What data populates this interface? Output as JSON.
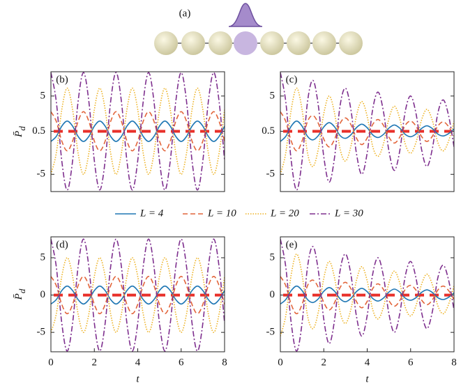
{
  "diagram": {
    "label": "(a)"
  },
  "chart_data": [
    {
      "type": "line",
      "label": "(b)",
      "ylabel": "P̄",
      "ylabel_sub": "d",
      "x": [
        0,
        0.25,
        0.5,
        0.75,
        1,
        1.25,
        1.5,
        1.75,
        2,
        2.25,
        2.5,
        2.75,
        3,
        3.25,
        3.5,
        3.75,
        4,
        4.25,
        4.5,
        4.75,
        5,
        5.25,
        5.5,
        5.75,
        6,
        6.25,
        6.5,
        6.75,
        7,
        7.25,
        7.5,
        7.75,
        8
      ],
      "xlim": [
        0,
        8
      ],
      "ylim": [
        -7.2,
        8.1
      ],
      "yticks": [
        -5,
        0.5,
        5
      ],
      "hline": {
        "value": 0.5,
        "color": "#e8302a"
      },
      "series": [
        {
          "name": "L = 4",
          "color": "#1f77b4",
          "style": "solid",
          "values": [
            -0.8,
            -0.15,
            1.15,
            1.8,
            1.15,
            -0.15,
            -0.8,
            -0.15,
            1.15,
            1.8,
            1.15,
            -0.15,
            -0.8,
            -0.15,
            1.15,
            1.8,
            1.15,
            -0.15,
            -0.8,
            -0.15,
            1.15,
            1.8,
            1.15,
            -0.15,
            -0.8,
            -0.15,
            1.15,
            1.8,
            1.15,
            -0.15,
            -0.8,
            -0.15,
            1.15
          ]
        },
        {
          "name": "L = 10",
          "color": "#e2643a",
          "style": "dashed",
          "values": [
            3,
            1.75,
            -0.75,
            -2,
            -0.75,
            1.75,
            3,
            1.75,
            -0.75,
            -2,
            -0.75,
            1.75,
            3,
            1.75,
            -0.75,
            -2,
            -0.75,
            1.75,
            3,
            1.75,
            -0.75,
            -2,
            -0.75,
            1.75,
            3,
            1.75,
            -0.75,
            -2,
            -0.75,
            1.75,
            3,
            1.75,
            -0.75
          ]
        },
        {
          "name": "L = 20",
          "color": "#edb120",
          "style": "dotted",
          "values": [
            -5,
            -2.25,
            3.25,
            6,
            3.25,
            -2.25,
            -5,
            -2.25,
            3.25,
            6,
            3.25,
            -2.25,
            -5,
            -2.25,
            3.25,
            6,
            3.25,
            -2.25,
            -5,
            -2.25,
            3.25,
            6,
            3.25,
            -2.25,
            -5,
            -2.25,
            3.25,
            6,
            3.25,
            -2.25,
            -5,
            -2.25,
            3.25
          ]
        },
        {
          "name": "L = 30",
          "color": "#7e2f8e",
          "style": "dashdot",
          "values": [
            8,
            4.25,
            -3.25,
            -7,
            -3.25,
            4.25,
            8,
            4.25,
            -3.25,
            -7,
            -3.25,
            4.25,
            8,
            4.25,
            -3.25,
            -7,
            -3.25,
            4.25,
            8,
            4.25,
            -3.25,
            -7,
            -3.25,
            4.25,
            8,
            4.25,
            -3.25,
            -7,
            -3.25,
            4.25,
            8,
            4.25,
            -3.25
          ]
        }
      ]
    },
    {
      "type": "line",
      "label": "(c)",
      "x": [
        0,
        0.25,
        0.5,
        0.75,
        1,
        1.25,
        1.5,
        1.75,
        2,
        2.25,
        2.5,
        2.75,
        3,
        3.25,
        3.5,
        3.75,
        4,
        4.25,
        4.5,
        4.75,
        5,
        5.25,
        5.5,
        5.75,
        6,
        6.25,
        6.5,
        6.75,
        7,
        7.25,
        7.5,
        7.75,
        8
      ],
      "xlim": [
        0,
        8
      ],
      "ylim": [
        -7.2,
        8.1
      ],
      "yticks": [
        -5,
        0.5,
        5
      ],
      "hline": {
        "value": 0.5,
        "color": "#e8302a"
      },
      "series": [
        {
          "name": "L = 4",
          "color": "#1f77b4",
          "style": "solid",
          "values": [
            -0.8,
            -0.15,
            1.15,
            1.8,
            1.15,
            -0.15,
            -0.6,
            -0.05,
            1.05,
            1.6,
            1.05,
            -0.05,
            -0.4,
            0.05,
            0.95,
            1.4,
            0.95,
            0.05,
            -0.3,
            0.1,
            0.9,
            1.3,
            0.9,
            0.1,
            -0.2,
            0.15,
            0.85,
            1.2,
            0.85,
            0.15,
            -0.1,
            0.2,
            0.8
          ]
        },
        {
          "name": "L = 10",
          "color": "#e2643a",
          "style": "dashed",
          "values": [
            3,
            1.75,
            -0.75,
            -2,
            -0.75,
            1.75,
            2.5,
            1.5,
            -0.5,
            -1.5,
            -0.5,
            1.5,
            2.2,
            1.35,
            -0.35,
            -1.2,
            -0.35,
            1.35,
            2,
            1.25,
            -0.25,
            -1,
            -0.25,
            1.25,
            1.8,
            1.15,
            -0.15,
            -0.8,
            -0.15,
            1.15,
            1.7,
            1.1,
            -0.1
          ]
        },
        {
          "name": "L = 20",
          "color": "#edb120",
          "style": "dotted",
          "values": [
            -5,
            -2.25,
            3.25,
            6,
            3.25,
            -2.25,
            -4,
            -1.75,
            2.75,
            5,
            2.75,
            -1.75,
            -3.3,
            -1.4,
            2.4,
            4.3,
            2.4,
            -1.4,
            -2.7,
            -1.1,
            2.1,
            3.7,
            2.1,
            -1.1,
            -2.3,
            -0.9,
            1.9,
            3.3,
            1.9,
            -0.9,
            -2,
            -0.75,
            1.75
          ]
        },
        {
          "name": "L = 30",
          "color": "#7e2f8e",
          "style": "dashdot",
          "values": [
            8,
            4.25,
            -3.25,
            -7,
            -3.25,
            4.25,
            7,
            3.75,
            -2.75,
            -6,
            -2.75,
            3.75,
            6,
            3.25,
            -2.25,
            -5,
            -2.25,
            3.25,
            5.5,
            3,
            -2,
            -4.5,
            -2,
            3,
            5,
            2.75,
            -1.75,
            -4,
            -1.75,
            2.75,
            4.5,
            2.5,
            -1.5
          ]
        }
      ]
    },
    {
      "type": "line",
      "label": "(d)",
      "ylabel": "P̄",
      "ylabel_sub": "d",
      "xlabel": "t",
      "x": [
        0,
        0.25,
        0.5,
        0.75,
        1,
        1.25,
        1.5,
        1.75,
        2,
        2.25,
        2.5,
        2.75,
        3,
        3.25,
        3.5,
        3.75,
        4,
        4.25,
        4.5,
        4.75,
        5,
        5.25,
        5.5,
        5.75,
        6,
        6.25,
        6.5,
        6.75,
        7,
        7.25,
        7.5,
        7.75,
        8
      ],
      "xlim": [
        0,
        8
      ],
      "xticks": [
        0,
        2,
        4,
        6,
        8
      ],
      "ylim": [
        -7.6,
        7.8
      ],
      "yticks": [
        -5,
        0,
        5
      ],
      "hline": {
        "value": 0,
        "color": "#e8302a"
      },
      "series": [
        {
          "name": "L = 4",
          "color": "#1f77b4",
          "style": "solid",
          "values": [
            -1.2,
            -0.6,
            0.6,
            1.2,
            0.6,
            -0.6,
            -1.2,
            -0.6,
            0.6,
            1.2,
            0.6,
            -0.6,
            -1.2,
            -0.6,
            0.6,
            1.2,
            0.6,
            -0.6,
            -1.2,
            -0.6,
            0.6,
            1.2,
            0.6,
            -0.6,
            -1.2,
            -0.6,
            0.6,
            1.2,
            0.6,
            -0.6,
            -1.2,
            -0.6,
            0.6
          ]
        },
        {
          "name": "L = 10",
          "color": "#e2643a",
          "style": "dashed",
          "values": [
            2.5,
            1.25,
            -1.25,
            -2.5,
            -1.25,
            1.25,
            2.5,
            1.25,
            -1.25,
            -2.5,
            -1.25,
            1.25,
            2.5,
            1.25,
            -1.25,
            -2.5,
            -1.25,
            1.25,
            2.5,
            1.25,
            -1.25,
            -2.5,
            -1.25,
            1.25,
            2.5,
            1.25,
            -1.25,
            -2.5,
            -1.25,
            1.25,
            2.5,
            1.25,
            -1.25
          ]
        },
        {
          "name": "L = 20",
          "color": "#edb120",
          "style": "dotted",
          "values": [
            -5,
            -2.5,
            2.5,
            5,
            2.5,
            -2.5,
            -5,
            -2.5,
            2.5,
            5,
            2.5,
            -2.5,
            -5,
            -2.5,
            2.5,
            5,
            2.5,
            -2.5,
            -5,
            -2.5,
            2.5,
            5,
            2.5,
            -2.5,
            -5,
            -2.5,
            2.5,
            5,
            2.5,
            -2.5,
            -5,
            -2.5,
            2.5
          ]
        },
        {
          "name": "L = 30",
          "color": "#7e2f8e",
          "style": "dashdot",
          "values": [
            7.5,
            3.75,
            -3.75,
            -7.5,
            -3.75,
            3.75,
            7.5,
            3.75,
            -3.75,
            -7.5,
            -3.75,
            3.75,
            7.5,
            3.75,
            -3.75,
            -7.5,
            -3.75,
            3.75,
            7.5,
            3.75,
            -3.75,
            -7.5,
            -3.75,
            3.75,
            7.5,
            3.75,
            -3.75,
            -7.5,
            -3.75,
            3.75,
            7.5,
            3.75,
            -3.75
          ]
        }
      ]
    },
    {
      "type": "line",
      "label": "(e)",
      "xlabel": "t",
      "x": [
        0,
        0.25,
        0.5,
        0.75,
        1,
        1.25,
        1.5,
        1.75,
        2,
        2.25,
        2.5,
        2.75,
        3,
        3.25,
        3.5,
        3.75,
        4,
        4.25,
        4.5,
        4.75,
        5,
        5.25,
        5.5,
        5.75,
        6,
        6.25,
        6.5,
        6.75,
        7,
        7.25,
        7.5,
        7.75,
        8
      ],
      "xlim": [
        0,
        8
      ],
      "xticks": [
        0,
        2,
        4,
        6,
        8
      ],
      "ylim": [
        -7.6,
        7.8
      ],
      "yticks": [
        -5,
        0,
        5
      ],
      "hline": {
        "value": 0,
        "color": "#e8302a"
      },
      "series": [
        {
          "name": "L = 4",
          "color": "#1f77b4",
          "style": "solid",
          "values": [
            -1.2,
            -0.6,
            0.6,
            1.2,
            0.6,
            -0.6,
            -1,
            -0.5,
            0.5,
            1,
            0.5,
            -0.5,
            -0.9,
            -0.45,
            0.45,
            0.9,
            0.45,
            -0.45,
            -0.8,
            -0.4,
            0.4,
            0.8,
            0.4,
            -0.4,
            -0.7,
            -0.35,
            0.35,
            0.7,
            0.35,
            -0.35,
            -0.6,
            -0.3,
            0.3
          ]
        },
        {
          "name": "L = 10",
          "color": "#e2643a",
          "style": "dashed",
          "values": [
            2.5,
            1.25,
            -1.25,
            -2.5,
            -1.25,
            1.25,
            2,
            1,
            -1,
            -2,
            -1,
            1,
            1.7,
            0.85,
            -0.85,
            -1.7,
            -0.85,
            0.85,
            1.5,
            0.75,
            -0.75,
            -1.5,
            -0.75,
            0.75,
            1.3,
            0.65,
            -0.65,
            -1.3,
            -0.65,
            0.65,
            1.2,
            0.6,
            -0.6
          ]
        },
        {
          "name": "L = 20",
          "color": "#edb120",
          "style": "dotted",
          "values": [
            -5.5,
            -2.75,
            2.75,
            5.5,
            2.75,
            -2.75,
            -4.5,
            -2.25,
            2.25,
            4.5,
            2.25,
            -2.25,
            -3.8,
            -1.9,
            1.9,
            3.8,
            1.9,
            -1.9,
            -3.2,
            -1.6,
            1.6,
            3.2,
            1.6,
            -1.6,
            -2.8,
            -1.4,
            1.4,
            2.8,
            1.4,
            -1.4,
            -2.5,
            -1.25,
            1.25
          ]
        },
        {
          "name": "L = 30",
          "color": "#7e2f8e",
          "style": "dashdot",
          "values": [
            7.5,
            3.75,
            -3.75,
            -7.5,
            -3.75,
            3.75,
            6.5,
            3.25,
            -3.25,
            -6.5,
            -3.25,
            3.25,
            5.5,
            2.75,
            -2.75,
            -5.5,
            -2.75,
            2.75,
            5,
            2.5,
            -2.5,
            -5,
            -2.5,
            2.5,
            4.5,
            2.25,
            -2.25,
            -4.5,
            -2.25,
            2.25,
            4,
            2,
            -2
          ]
        }
      ]
    }
  ]
}
